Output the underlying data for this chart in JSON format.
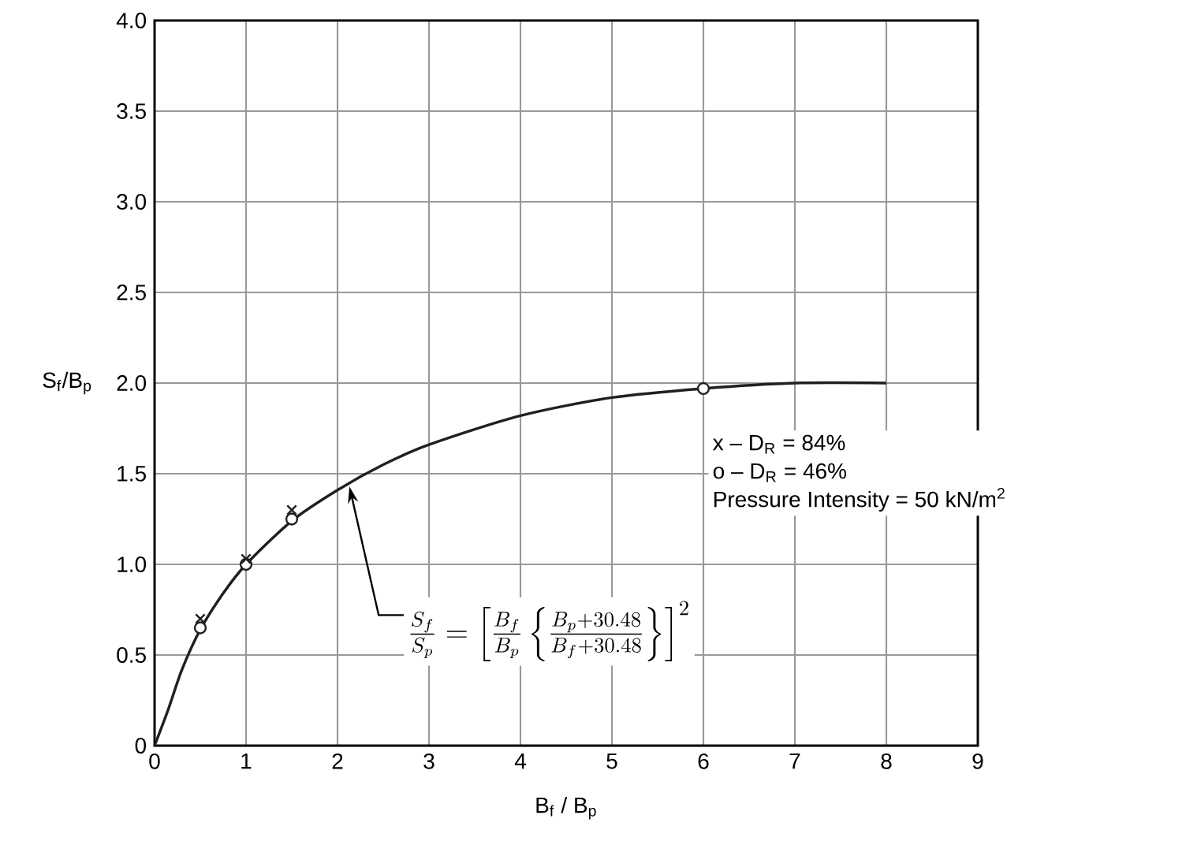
{
  "chart_data": {
    "type": "line",
    "xlabel": "B$_{f}$ / B$_{p}$",
    "ylabel": "S$_{f}$/B$_{p}$",
    "x": [
      0,
      0.15,
      0.3,
      0.5,
      0.75,
      1,
      1.5,
      2,
      2.5,
      3,
      4,
      5,
      6,
      7,
      8
    ],
    "series": [
      {
        "color": "#231f20",
        "marker": "none",
        "values": [
          0,
          0.2,
          0.42,
          0.64,
          0.84,
          1.0,
          1.24,
          1.41,
          1.55,
          1.66,
          1.82,
          1.92,
          1.97,
          2.0,
          2.0
        ]
      },
      {
        "type": "scatter",
        "color": "#231f20",
        "marker": "cross",
        "x": [
          0.5,
          1,
          1.5
        ],
        "values": [
          0.7,
          1.03,
          1.3
        ]
      },
      {
        "type": "scatter",
        "color": "#231f20",
        "marker": "circle",
        "x": [
          0.5,
          1,
          1.5,
          6
        ],
        "values": [
          0.65,
          1.0,
          1.25,
          1.97
        ]
      }
    ],
    "xlim": [
      0,
      9
    ],
    "ylim": [
      0,
      4
    ],
    "xticks": [
      0,
      1,
      2,
      3,
      4,
      5,
      6,
      7,
      8,
      9
    ],
    "yticks": [
      0,
      0.5,
      {
        "value": 1,
        "label": "1.0"
      },
      1.5,
      {
        "value": 2,
        "label": "2.0"
      },
      2.5,
      {
        "value": 3,
        "label": "3.0"
      },
      3.5,
      {
        "value": 4,
        "label": "4.0"
      }
    ],
    "grid": true,
    "annotations": [
      {
        "text": "\\frac{S_f}{S_p}=\\left[\\frac{B_f}{B_p}\\left\\{\\frac{B_p+30.48}{B_f+30.48}\\right\\}\\right]^2",
        "x": 2.13,
        "y": 1.43
      },
      "x – D$_{R}$ = 84%",
      "o – D$_{R}$ = 46%",
      "Pressure Intensity = 50 kN/m$^{2}$"
    ]
  }
}
